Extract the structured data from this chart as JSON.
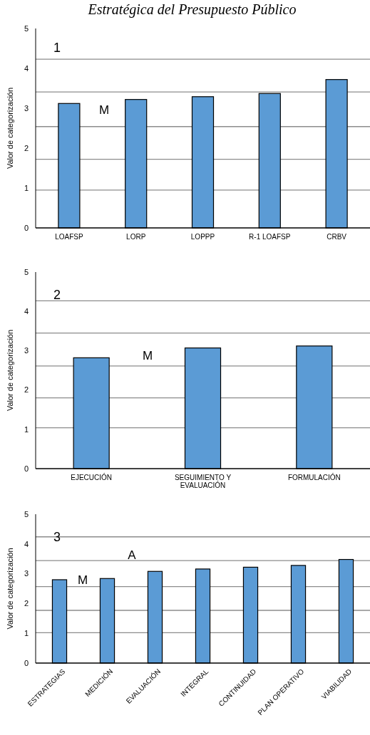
{
  "chart_data": [
    {
      "type": "bar",
      "title": "Estratégica del Presupuesto Público",
      "ylabel": "Valor de categorización",
      "categories": [
        "LOAFSP",
        "LORP",
        "LOPPP",
        "R-1 LOAFSP",
        "CRBV"
      ],
      "values": [
        3.12,
        3.22,
        3.29,
        3.37,
        3.72
      ],
      "color": "#5b9bd5",
      "ylim": [
        0,
        5
      ],
      "yticks": [
        0,
        1,
        2,
        3,
        4,
        5
      ],
      "grid": false,
      "annotations": [
        "1",
        "M"
      ],
      "ref_lines": [
        {
          "axis": "y",
          "value": 4.23
        },
        {
          "axis": "y",
          "value": 3.41
        },
        {
          "axis": "y",
          "value": 2.54
        },
        {
          "axis": "y",
          "value": 1.72
        },
        {
          "axis": "y",
          "value": 0.95
        }
      ]
    },
    {
      "type": "bar",
      "ylabel": "Valor de categorización",
      "categories": [
        "EJECUCIÓN",
        "SEGUIMIENTO Y EVALUACIÓN",
        "FORMULACIÓN"
      ],
      "values": [
        2.82,
        3.07,
        3.12
      ],
      "color": "#5b9bd5",
      "ylim": [
        0,
        5
      ],
      "yticks": [
        0,
        1,
        2,
        3,
        4,
        5
      ],
      "grid": false,
      "annotations": [
        "2",
        "M"
      ],
      "ref_lines": [
        {
          "axis": "y",
          "value": 4.27
        },
        {
          "axis": "y",
          "value": 3.45
        },
        {
          "axis": "y",
          "value": 2.61
        },
        {
          "axis": "y",
          "value": 1.8
        },
        {
          "axis": "y",
          "value": 1.04
        }
      ]
    },
    {
      "type": "bar",
      "ylabel": "Valor de categorización",
      "categories": [
        "ESTRATEGIAS",
        "MEDICIÓN",
        "EVALUACIÓN",
        "INTEGRAL",
        "CONTINUIDAD",
        "PLAN OPERATIVO",
        "VIABILIDAD"
      ],
      "values": [
        2.8,
        2.84,
        3.08,
        3.16,
        3.22,
        3.28,
        3.48
      ],
      "color": "#5b9bd5",
      "ylim": [
        0,
        5
      ],
      "yticks": [
        0,
        1,
        2,
        3,
        4,
        5
      ],
      "grid": false,
      "annotations": [
        "3",
        "M",
        "A"
      ],
      "ref_lines": [
        {
          "axis": "y",
          "value": 4.24
        },
        {
          "axis": "y",
          "value": 3.44
        },
        {
          "axis": "y",
          "value": 2.57
        },
        {
          "axis": "y",
          "value": 1.77
        },
        {
          "axis": "y",
          "value": 1.02
        }
      ]
    }
  ]
}
